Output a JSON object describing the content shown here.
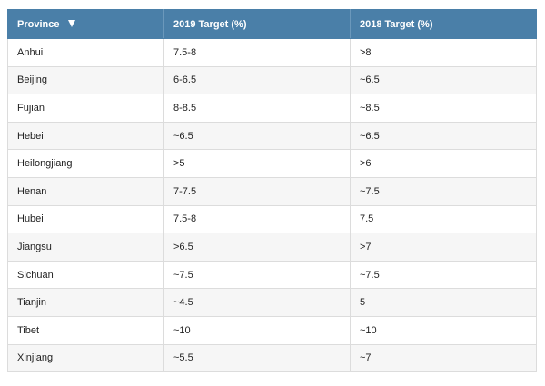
{
  "table": {
    "headers": [
      "Province",
      "2019 Target (%)",
      "2018 Target (%)"
    ],
    "sort_column": "Province",
    "sort_direction": "descending-indicator",
    "rows": [
      [
        "Anhui",
        "7.5-8",
        ">8"
      ],
      [
        "Beijing",
        "6-6.5",
        "~6.5"
      ],
      [
        "Fujian",
        "8-8.5",
        "~8.5"
      ],
      [
        "Hebei",
        "~6.5",
        "~6.5"
      ],
      [
        "Heilongjiang",
        ">5",
        ">6"
      ],
      [
        "Henan",
        "7-7.5",
        "~7.5"
      ],
      [
        "Hubei",
        "7.5-8",
        "7.5"
      ],
      [
        "Jiangsu",
        ">6.5",
        ">7"
      ],
      [
        "Sichuan",
        "~7.5",
        "~7.5"
      ],
      [
        "Tianjin",
        "~4.5",
        "5"
      ],
      [
        "Tibet",
        "~10",
        "~10"
      ],
      [
        "Xinjiang",
        "~5.5",
        "~7"
      ]
    ]
  },
  "colors": {
    "header_bg": "#4a7fa8",
    "header_text": "#ffffff",
    "row_alt_bg": "#f6f6f6",
    "border": "#dcdcdc"
  },
  "icons": {
    "sort": "sort-down-triangle-icon"
  }
}
